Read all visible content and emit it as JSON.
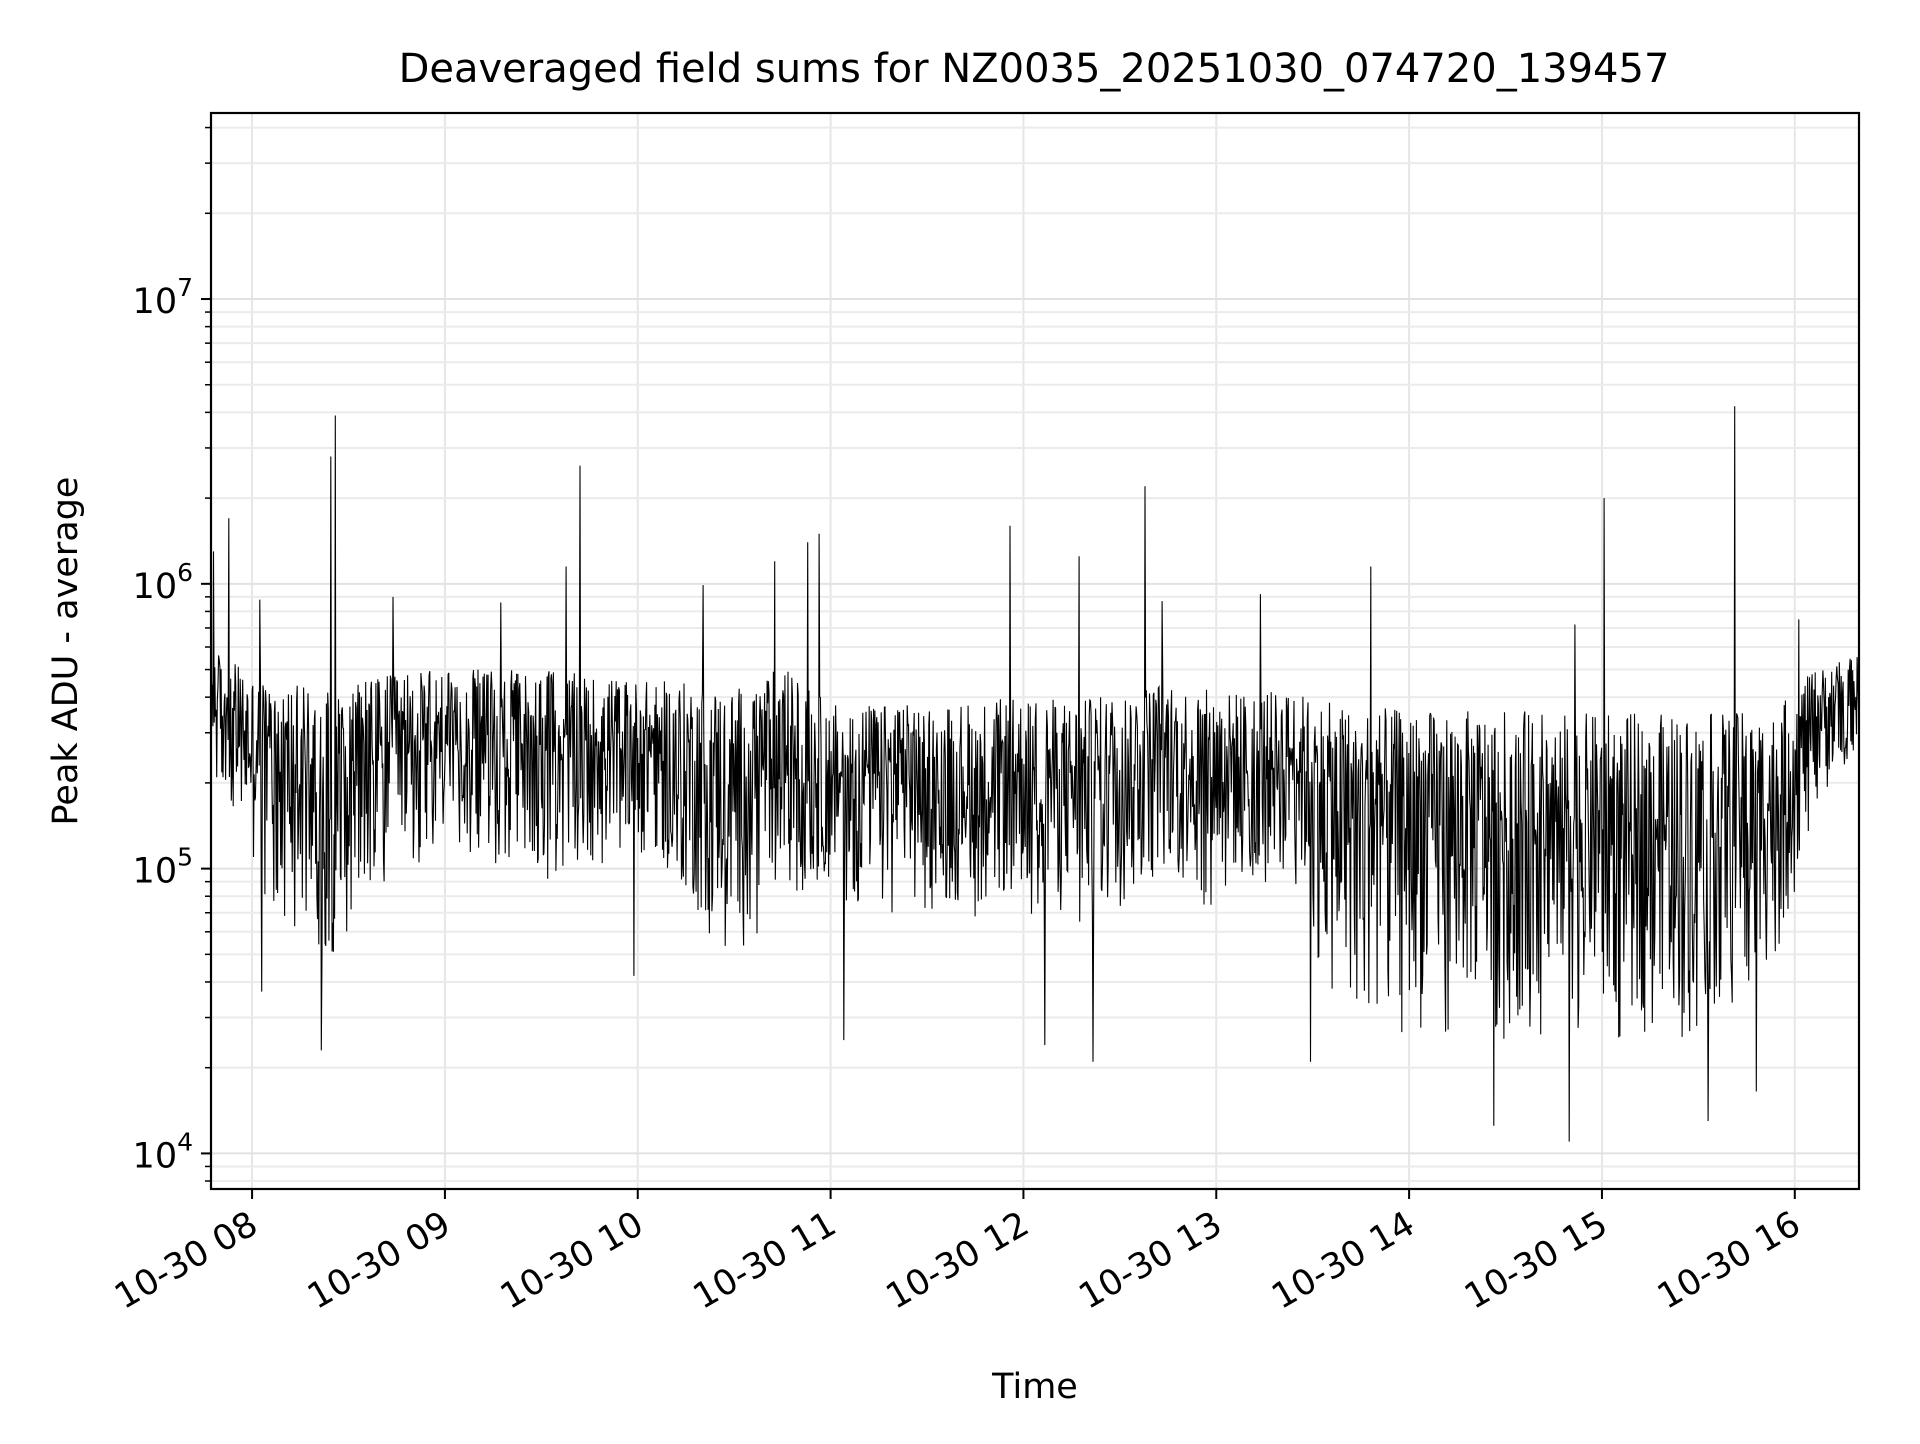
{
  "chart_data": {
    "type": "line",
    "title": "Deaveraged field sums for NZ0035_20251030_074720_139457",
    "xlabel": "Time",
    "ylabel": "Peak ADU - average",
    "yscale": "log",
    "ylim": [
      7500,
      45000000
    ],
    "xlim_hours": [
      7.787,
      16.333
    ],
    "grid": true,
    "x_ticks": [
      {
        "hour": 8,
        "label": "10-30 08"
      },
      {
        "hour": 9,
        "label": "10-30 09"
      },
      {
        "hour": 10,
        "label": "10-30 10"
      },
      {
        "hour": 11,
        "label": "10-30 11"
      },
      {
        "hour": 12,
        "label": "10-30 12"
      },
      {
        "hour": 13,
        "label": "10-30 13"
      },
      {
        "hour": 14,
        "label": "10-30 14"
      },
      {
        "hour": 15,
        "label": "10-30 15"
      },
      {
        "hour": 16,
        "label": "10-30 16"
      }
    ],
    "y_ticks": [
      {
        "value": 10000,
        "base": "10",
        "exp": "4"
      },
      {
        "value": 100000,
        "base": "10",
        "exp": "5"
      },
      {
        "value": 1000000,
        "base": "10",
        "exp": "6"
      },
      {
        "value": 10000000,
        "base": "10",
        "exp": "7"
      }
    ],
    "series": [
      {
        "name": "Peak ADU - average",
        "color": "#000000",
        "description": "Dense noisy time series; values read from plot as envelope (typical upper level, typical lower level) plus notable spikes",
        "envelope": {
          "hours": [
            7.79,
            8.0,
            8.2,
            8.4,
            8.6,
            9.0,
            9.5,
            10.0,
            10.3,
            10.5,
            10.75,
            11.0,
            11.5,
            12.0,
            12.3,
            12.7,
            13.0,
            13.4,
            13.6,
            14.0,
            14.5,
            15.0,
            15.5,
            15.9,
            16.1,
            16.33
          ],
          "upper": [
            600000,
            480000,
            450000,
            420000,
            480000,
            500000,
            500000,
            460000,
            450000,
            430000,
            520000,
            380000,
            380000,
            400000,
            390000,
            460000,
            420000,
            420000,
            380000,
            360000,
            360000,
            350000,
            350000,
            360000,
            500000,
            560000
          ],
          "lower": [
            180000,
            90000,
            60000,
            45000,
            70000,
            120000,
            90000,
            110000,
            60000,
            45000,
            80000,
            70000,
            70000,
            65000,
            55000,
            90000,
            70000,
            90000,
            30000,
            25000,
            25000,
            25000,
            25000,
            40000,
            150000,
            250000
          ]
        },
        "spikes": [
          {
            "hour": 7.8,
            "value": 1300000
          },
          {
            "hour": 7.88,
            "value": 1700000
          },
          {
            "hour": 8.04,
            "value": 880000
          },
          {
            "hour": 8.41,
            "value": 2800000
          },
          {
            "hour": 8.43,
            "value": 3900000
          },
          {
            "hour": 8.73,
            "value": 900000
          },
          {
            "hour": 9.29,
            "value": 860000
          },
          {
            "hour": 9.63,
            "value": 1150000
          },
          {
            "hour": 9.7,
            "value": 2600000
          },
          {
            "hour": 10.34,
            "value": 990000
          },
          {
            "hour": 10.71,
            "value": 1200000
          },
          {
            "hour": 10.88,
            "value": 1400000
          },
          {
            "hour": 10.94,
            "value": 1500000
          },
          {
            "hour": 11.93,
            "value": 1600000
          },
          {
            "hour": 12.29,
            "value": 1250000
          },
          {
            "hour": 12.63,
            "value": 2200000
          },
          {
            "hour": 12.72,
            "value": 870000
          },
          {
            "hour": 13.23,
            "value": 920000
          },
          {
            "hour": 13.8,
            "value": 1150000
          },
          {
            "hour": 14.86,
            "value": 720000
          },
          {
            "hour": 15.01,
            "value": 2000000
          },
          {
            "hour": 15.69,
            "value": 4200000
          },
          {
            "hour": 16.02,
            "value": 750000
          }
        ],
        "dips": [
          {
            "hour": 8.05,
            "value": 37000
          },
          {
            "hour": 8.36,
            "value": 23000
          },
          {
            "hour": 9.98,
            "value": 42000
          },
          {
            "hour": 11.07,
            "value": 25000
          },
          {
            "hour": 12.11,
            "value": 24000
          },
          {
            "hour": 12.36,
            "value": 21000
          },
          {
            "hour": 13.49,
            "value": 21000
          },
          {
            "hour": 14.44,
            "value": 12500
          },
          {
            "hour": 14.83,
            "value": 11000
          },
          {
            "hour": 15.55,
            "value": 13000
          },
          {
            "hour": 15.8,
            "value": 16500
          }
        ]
      }
    ]
  }
}
